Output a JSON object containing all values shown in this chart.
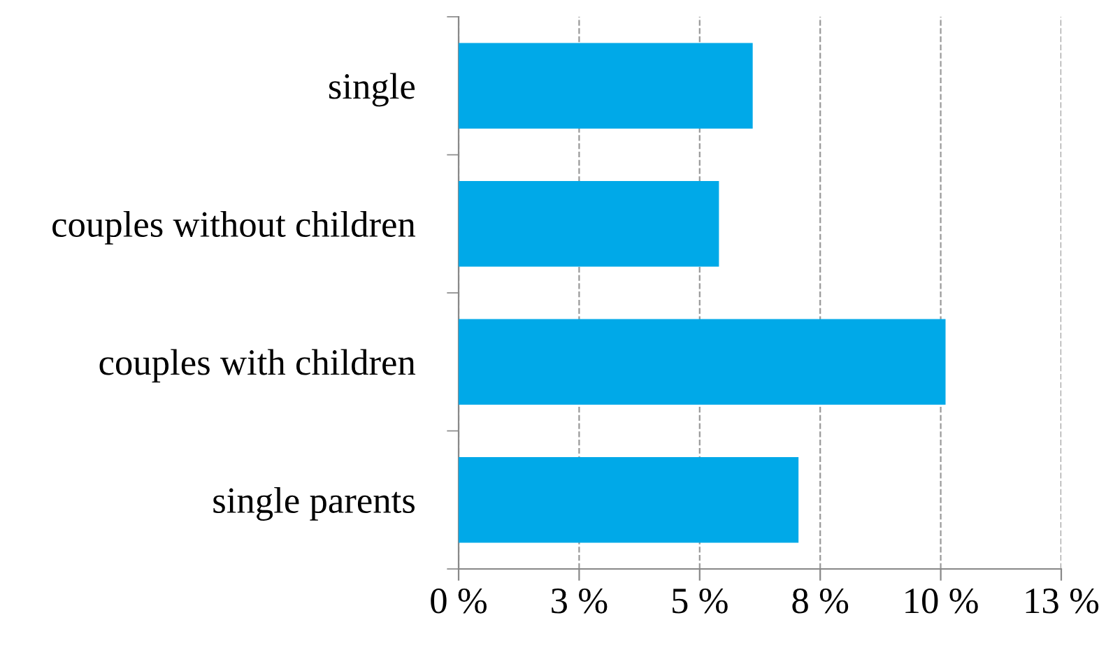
{
  "chart_data": {
    "type": "bar",
    "orientation": "horizontal",
    "categories": [
      "single",
      "couples without children",
      "couples with children",
      "single parents"
    ],
    "values": [
      6.1,
      5.4,
      10.1,
      7.05
    ],
    "color": "#00a9e8",
    "xlim": [
      0,
      12.5
    ],
    "xticks": [
      {
        "value": 0,
        "label": "0 %"
      },
      {
        "value": 2.5,
        "label": "3 %"
      },
      {
        "value": 5,
        "label": "5 %"
      },
      {
        "value": 7.5,
        "label": "8 %"
      },
      {
        "value": 10,
        "label": "10 %"
      },
      {
        "value": 12.5,
        "label": "13 %"
      }
    ],
    "grid": "x",
    "legend": false
  }
}
